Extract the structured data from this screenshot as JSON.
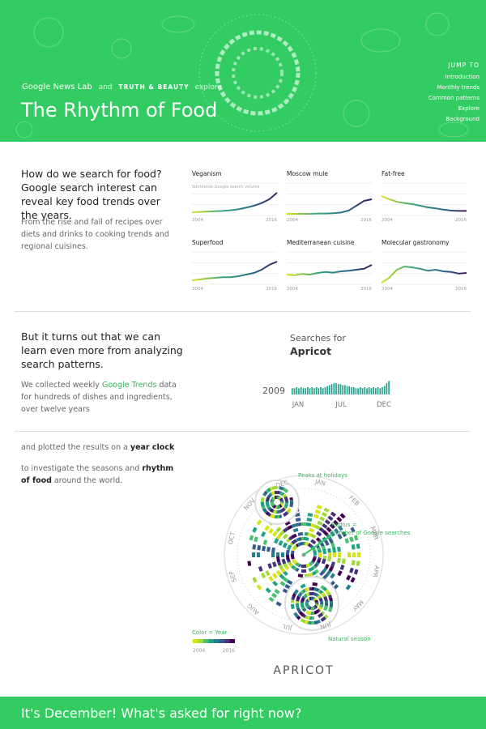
{
  "header": {
    "brand": "Google News Lab",
    "and": "and",
    "partner": "TRUTH & BEAUTY",
    "explore": "explore",
    "title": "The Rhythm of Food",
    "nav_title": "JUMP TO",
    "nav": [
      "Introduction",
      "Monthly trends",
      "Common patterns",
      "Explore",
      "Background"
    ]
  },
  "intro": {
    "heading": "How do we search for food? Google search interest can reveal key food trends over the years.",
    "body": "From the rise and fall of recipes over diets and drinks to cooking trends and regional cuisines.",
    "y_note": "Worldwide Google search volume",
    "ylim": [
      0,
      100
    ],
    "trends": [
      {
        "name": "Veganism",
        "start": "2004",
        "end": "2016",
        "values": [
          10,
          11,
          12,
          13,
          14,
          16,
          19,
          24,
          30,
          38,
          50,
          70
        ]
      },
      {
        "name": "Moscow mule",
        "start": "2004",
        "end": "2016",
        "values": [
          5,
          5,
          5,
          5,
          6,
          6,
          7,
          9,
          15,
          30,
          45,
          50
        ]
      },
      {
        "name": "Fat-free",
        "start": "2004",
        "end": "2016",
        "values": [
          60,
          50,
          42,
          38,
          35,
          30,
          25,
          22,
          18,
          15,
          14,
          14
        ]
      },
      {
        "name": "Superfood",
        "start": "2004",
        "end": "2016",
        "values": [
          12,
          15,
          18,
          20,
          22,
          22,
          25,
          30,
          35,
          45,
          60,
          70
        ]
      },
      {
        "name": "Mediterranean cuisine",
        "start": "2004",
        "end": "2016",
        "values": [
          30,
          28,
          32,
          30,
          35,
          38,
          36,
          40,
          42,
          45,
          48,
          60
        ]
      },
      {
        "name": "Molecular gastronomy",
        "start": "2004",
        "end": "2016",
        "values": [
          5,
          20,
          45,
          55,
          52,
          48,
          42,
          45,
          40,
          38,
          33,
          35
        ]
      }
    ]
  },
  "learn": {
    "heading": "But it turns out that we can learn even more from analyzing search patterns.",
    "body": [
      "We collected weekly ",
      "Google Trends",
      " data for hundreds of dishes and ingredients, over twelve years"
    ],
    "chart": {
      "title": "Searches for",
      "subject": "Apricot",
      "year": "2009",
      "months": [
        "JAN",
        "JUL",
        "DEC"
      ],
      "ylim": [
        0,
        14
      ],
      "values": [
        6,
        6,
        7,
        6,
        7,
        6,
        6,
        7,
        6,
        7,
        6,
        7,
        6,
        7,
        6,
        7,
        8,
        9,
        10,
        11,
        11,
        10,
        10,
        9,
        9,
        8,
        8,
        7,
        7,
        6,
        6,
        7,
        6,
        7,
        6,
        7,
        6,
        7,
        6,
        7,
        6,
        7,
        8,
        11,
        13
      ]
    }
  },
  "clock": {
    "lead": [
      "and plotted the results on a ",
      "year clock"
    ],
    "sub": [
      "to investigate the seasons and ",
      "rhythm of food",
      " around the world."
    ],
    "months": [
      "JAN",
      "FEB",
      "MAR",
      "APR",
      "MAY",
      "JUN",
      "JUL",
      "AUG",
      "SEP",
      "OCT",
      "NOV",
      "DEC"
    ],
    "annotations": {
      "holidays": "Peaks at holidays",
      "radius": [
        "Radius =",
        "Number of Google searches"
      ],
      "season": "Natural season"
    },
    "legend": {
      "title": "Color = Year",
      "start": "2004",
      "end": "2016"
    },
    "subject": "APRICOT"
  },
  "banner": {
    "text": "It's December! What's asked for right now?"
  }
}
